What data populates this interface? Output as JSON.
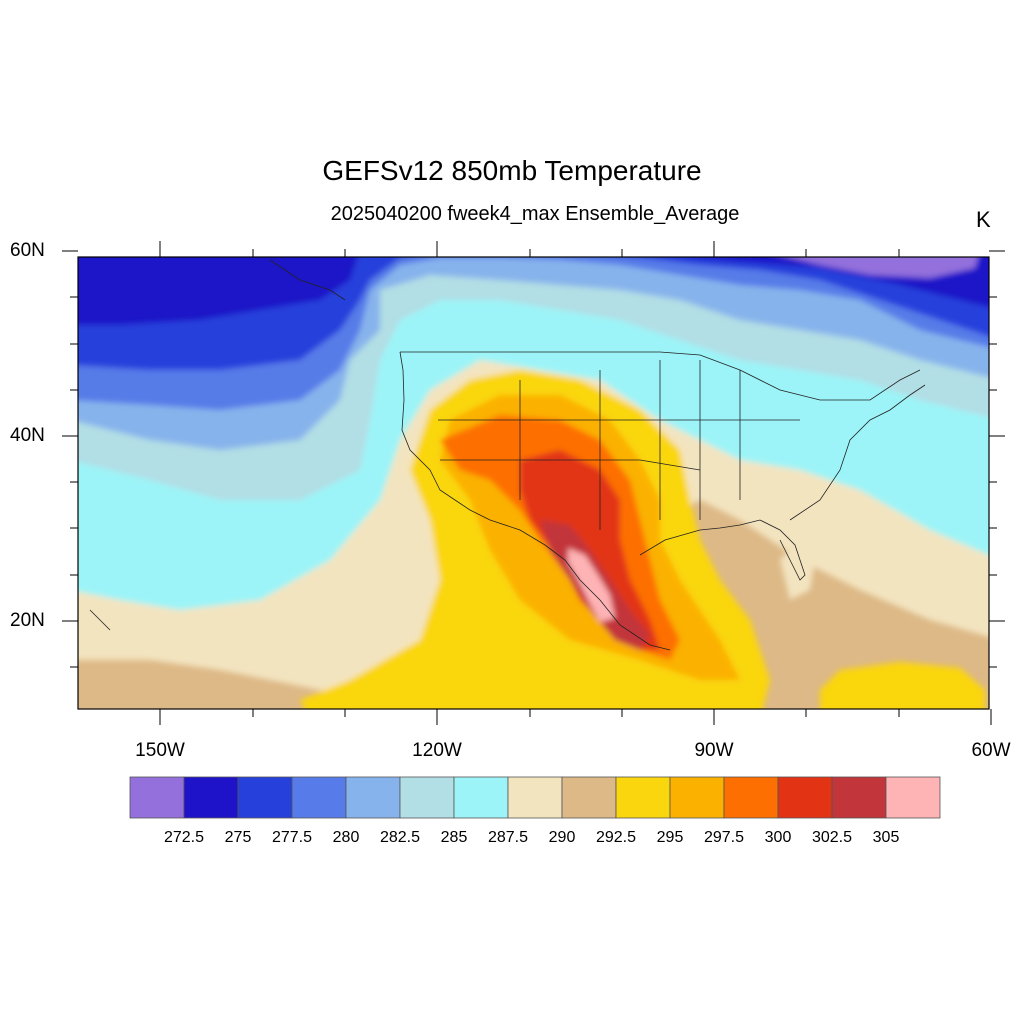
{
  "header": {
    "title": "GEFSv12 850mb Temperature",
    "subtitle": "2025040200 fweek4_max Ensemble_Average",
    "units": "K"
  },
  "map": {
    "lat_labels": [
      "60N",
      "40N",
      "20N"
    ],
    "lon_labels": [
      "150W",
      "120W",
      "90W",
      "60W"
    ],
    "lon_range": [
      -160,
      -60
    ],
    "lat_range": [
      10,
      60
    ]
  },
  "colorbar": {
    "colors": [
      "#9370db",
      "#1e13c8",
      "#2640dc",
      "#577be8",
      "#87b3ec",
      "#b2dee5",
      "#9cf4f8",
      "#f3e4c0",
      "#ddb987",
      "#fad60e",
      "#fbb100",
      "#fd6f00",
      "#e23415",
      "#c2353b",
      "#feb3b5"
    ],
    "labels": [
      "272.5",
      "275",
      "277.5",
      "280",
      "282.5",
      "285",
      "287.5",
      "290",
      "292.5",
      "295",
      "297.5",
      "300",
      "302.5",
      "305"
    ]
  }
}
